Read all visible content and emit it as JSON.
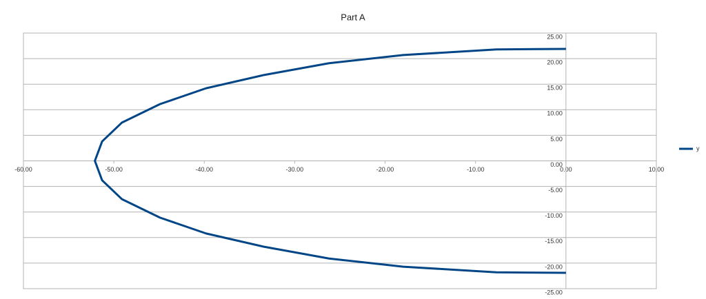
{
  "chart_data": {
    "type": "scatter",
    "title": "Part A",
    "x": [
      0,
      -7.7,
      -18.0,
      -26.2,
      -33.4,
      -39.8,
      -44.9,
      -49.1,
      -51.3,
      -52.1,
      -51.3,
      -49.1,
      -44.9,
      -39.8,
      -33.4,
      -26.2,
      -18.0,
      -7.7,
      0
    ],
    "series": [
      {
        "name": "y",
        "color": "#004586",
        "values": [
          21.9,
          21.8,
          20.7,
          19.1,
          16.8,
          14.2,
          11.1,
          7.5,
          3.8,
          0,
          -3.8,
          -7.5,
          -11.1,
          -14.2,
          -16.8,
          -19.1,
          -20.7,
          -21.8,
          -21.9
        ]
      }
    ],
    "xlim": [
      -60,
      10
    ],
    "xticks": [
      {
        "value": -60,
        "label": "-60.00"
      },
      {
        "value": -50,
        "label": "-50.00"
      },
      {
        "value": -40,
        "label": "-40.00"
      },
      {
        "value": -30,
        "label": "-30.00"
      },
      {
        "value": -20,
        "label": "-20.00"
      },
      {
        "value": -10,
        "label": "-10.00"
      },
      {
        "value": 0,
        "label": "0.00"
      },
      {
        "value": 10,
        "label": "10.00"
      }
    ],
    "ylim": [
      -25,
      25
    ],
    "yticks": [
      {
        "value": -25,
        "label": "-25.00"
      },
      {
        "value": -20,
        "label": "-20.00"
      },
      {
        "value": -15,
        "label": "-15.00"
      },
      {
        "value": -10,
        "label": "-10.00"
      },
      {
        "value": -5,
        "label": "-5.00"
      },
      {
        "value": 0,
        "label": "0.00"
      },
      {
        "value": 5,
        "label": "5.00"
      },
      {
        "value": 10,
        "label": "10.00"
      },
      {
        "value": 15,
        "label": "15.00"
      },
      {
        "value": 20,
        "label": "20.00"
      },
      {
        "value": 25,
        "label": "25.00"
      }
    ],
    "grid": true,
    "legend": "right"
  }
}
